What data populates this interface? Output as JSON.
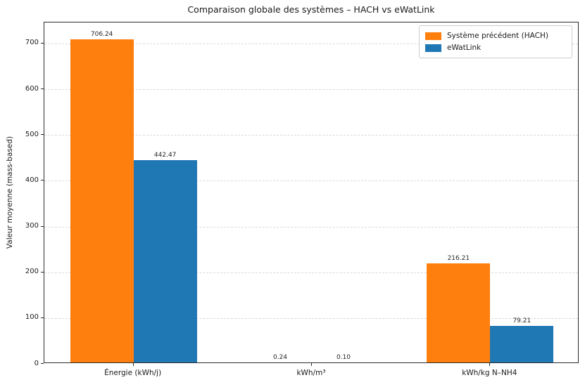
{
  "title": "Comparaison globale des systèmes – HACH vs eWatLink",
  "axes": {
    "ylabel": "Valeur moyenne (mass-based)"
  },
  "chart_data": {
    "type": "bar",
    "title": "Comparaison globale des systèmes – HACH vs eWatLink",
    "categories": [
      "Énergie (kWh/j)",
      "kWh/m³",
      "kWh/kg N–NH4"
    ],
    "series": [
      {
        "name": "Système précédent (HACH)",
        "color": "#ff7f0e",
        "values": [
          706.24,
          0.24,
          216.21
        ],
        "labels": [
          "706.24",
          "0.24",
          "216.21"
        ]
      },
      {
        "name": "eWatLink",
        "color": "#1f77b4",
        "values": [
          442.47,
          0.1,
          79.21
        ],
        "labels": [
          "442.47",
          "0.10",
          "79.21"
        ]
      }
    ],
    "xlabel": "",
    "ylabel": "Valeur moyenne (mass-based)",
    "ylim": [
      0,
      746
    ],
    "yticks": [
      0,
      100,
      200,
      300,
      400,
      500,
      600,
      700
    ],
    "grid": "dashed-horizontal",
    "grid_color": "#d9d9d9",
    "legend_position": "upper-right",
    "bar_label_format": "2-decimals"
  }
}
